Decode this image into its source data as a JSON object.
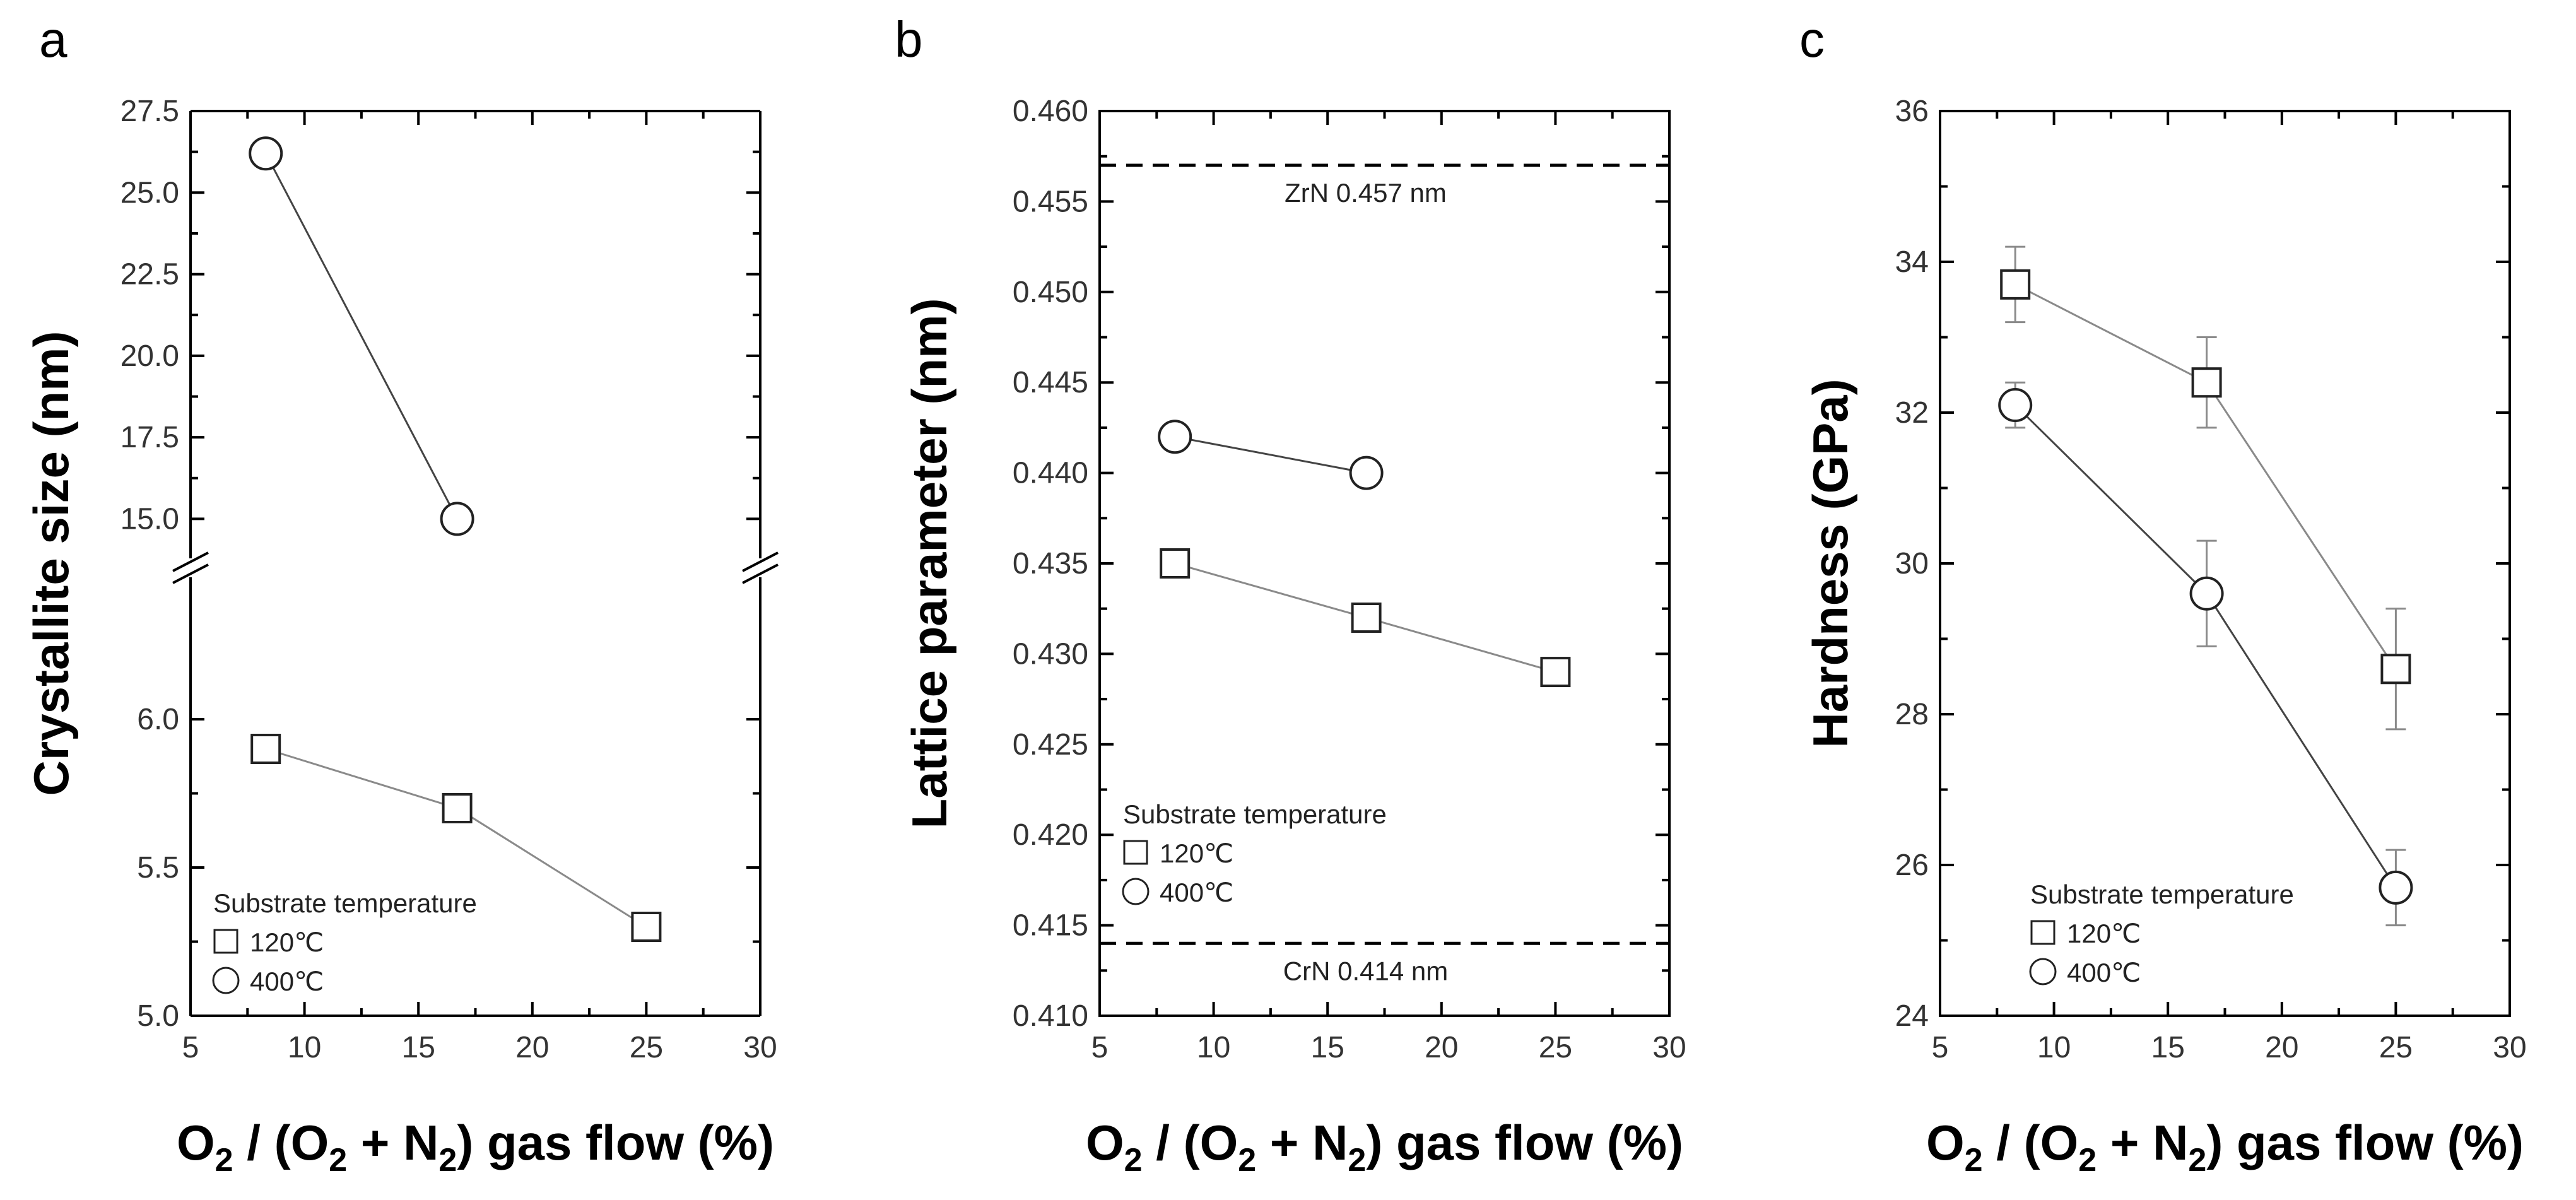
{
  "colors": {
    "axis": "#000000",
    "series_line_120": "#8a8a8a",
    "series_line_400": "#444444",
    "marker_edge": "#222222",
    "error_bar": "#8a8a8a"
  },
  "chart_data": [
    {
      "panel": "a",
      "type": "line",
      "xlabel": {
        "main": "O",
        "sub1": "2",
        "mid": " / (O",
        "sub2": "2",
        "mid2": " + N",
        "sub3": "2",
        "end": ") gas flow (%)"
      },
      "ylabel": "Crystallite size (nm)",
      "xlim": [
        5,
        30
      ],
      "x_ticks": [
        "5",
        "10",
        "15",
        "20",
        "25",
        "30"
      ],
      "broken_axis": true,
      "upper_ylim": [
        13.5,
        27.5
      ],
      "upper_y_ticks": [
        "15.0",
        "17.5",
        "20.0",
        "22.5",
        "25.0",
        "27.5"
      ],
      "lower_ylim": [
        5.0,
        6.5
      ],
      "lower_y_ticks": [
        "5.0",
        "5.5",
        "6.0"
      ],
      "legend": {
        "title": "Substrate temperature",
        "entries": [
          "120℃",
          "400℃"
        ]
      },
      "series": [
        {
          "name": "120℃",
          "marker": "square",
          "x": [
            8.3,
            16.7,
            25
          ],
          "y": [
            5.9,
            5.7,
            5.3
          ]
        },
        {
          "name": "400℃",
          "marker": "circle",
          "x": [
            8.3,
            16.7
          ],
          "y": [
            26.2,
            15.0
          ]
        }
      ]
    },
    {
      "panel": "b",
      "type": "line",
      "xlabel": {
        "main": "O",
        "sub1": "2",
        "mid": " / (O",
        "sub2": "2",
        "mid2": " + N",
        "sub3": "2",
        "end": ") gas flow (%)"
      },
      "ylabel": "Lattice parameter (nm)",
      "xlim": [
        5,
        30
      ],
      "x_ticks": [
        "5",
        "10",
        "15",
        "20",
        "25",
        "30"
      ],
      "ylim": [
        0.41,
        0.46
      ],
      "y_ticks": [
        "0.410",
        "0.415",
        "0.420",
        "0.425",
        "0.430",
        "0.435",
        "0.440",
        "0.445",
        "0.450",
        "0.455",
        "0.460"
      ],
      "reference_lines": [
        {
          "y": 0.457,
          "label": "ZrN 0.457 nm"
        },
        {
          "y": 0.414,
          "label": "CrN 0.414 nm"
        }
      ],
      "legend": {
        "title": "Substrate temperature",
        "entries": [
          "120℃",
          "400℃"
        ]
      },
      "series": [
        {
          "name": "120℃",
          "marker": "square",
          "x": [
            8.3,
            16.7,
            25
          ],
          "y": [
            0.435,
            0.432,
            0.429
          ]
        },
        {
          "name": "400℃",
          "marker": "circle",
          "x": [
            8.3,
            16.7
          ],
          "y": [
            0.442,
            0.44
          ]
        }
      ]
    },
    {
      "panel": "c",
      "type": "line",
      "xlabel": {
        "main": "O",
        "sub1": "2",
        "mid": " / (O",
        "sub2": "2",
        "mid2": " + N",
        "sub3": "2",
        "end": ") gas flow (%)"
      },
      "ylabel": "Hardness (GPa)",
      "xlim": [
        5,
        30
      ],
      "x_ticks": [
        "5",
        "10",
        "15",
        "20",
        "25",
        "30"
      ],
      "ylim": [
        24,
        36
      ],
      "y_ticks": [
        "24",
        "26",
        "28",
        "30",
        "32",
        "34",
        "36"
      ],
      "legend": {
        "title": "Substrate temperature",
        "entries": [
          "120℃",
          "400℃"
        ]
      },
      "series": [
        {
          "name": "120℃",
          "marker": "square",
          "x": [
            8.3,
            16.7,
            25
          ],
          "y": [
            33.7,
            32.4,
            28.6
          ],
          "yerr": [
            0.5,
            0.6,
            0.8
          ]
        },
        {
          "name": "400℃",
          "marker": "circle",
          "x": [
            8.3,
            16.7,
            25
          ],
          "y": [
            32.1,
            29.6,
            25.7
          ],
          "yerr": [
            0.3,
            0.7,
            0.5
          ]
        }
      ]
    }
  ]
}
